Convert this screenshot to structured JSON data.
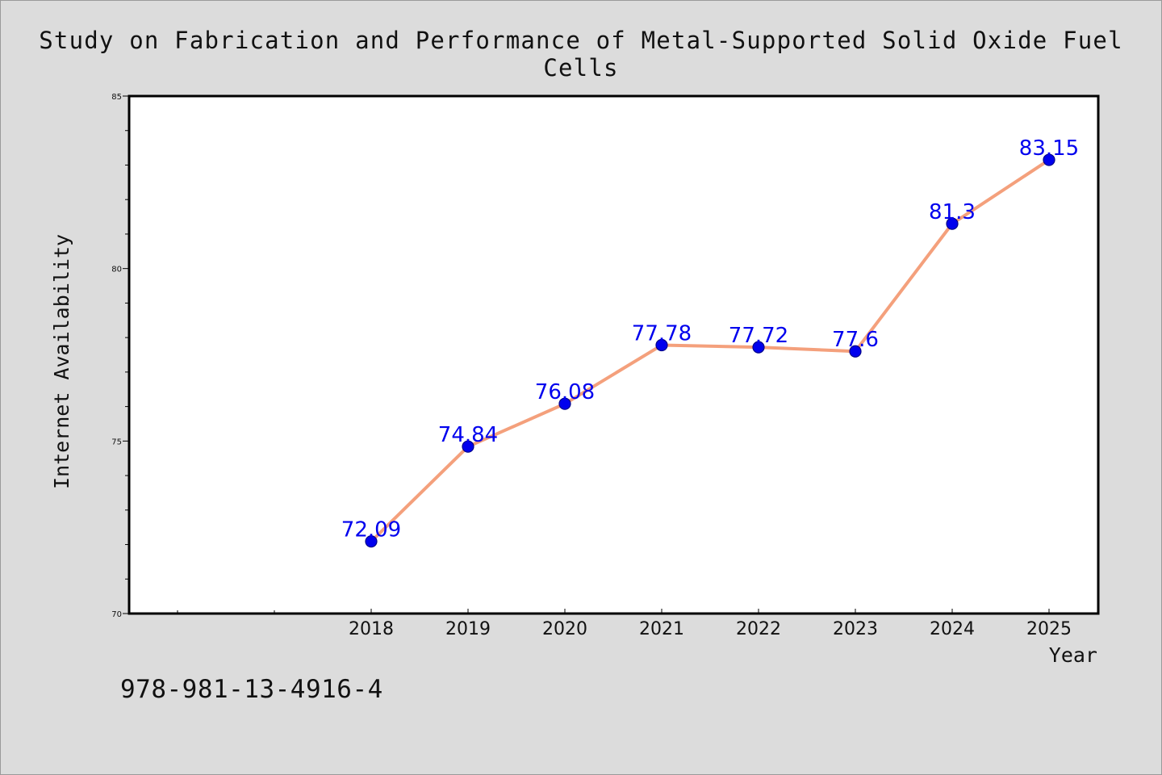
{
  "chart_data": {
    "type": "line",
    "title": "Study on Fabrication and Performance of Metal-Supported Solid Oxide Fuel Cells",
    "xlabel": "Year",
    "ylabel": "Internet Availability",
    "categories": [
      "2018",
      "2019",
      "2020",
      "2021",
      "2022",
      "2023",
      "2024",
      "2025"
    ],
    "series": [
      {
        "values": [
          72.09,
          74.84,
          76.08,
          77.78,
          77.72,
          77.6,
          81.3,
          83.15
        ],
        "data_labels": [
          "72.09",
          "74.84",
          "76.08",
          "77.78",
          "77.72",
          "77.6",
          "81.3",
          "83.15"
        ]
      }
    ],
    "ylim": [
      70,
      85
    ],
    "yticks": [
      "70",
      "75",
      "80",
      "85"
    ],
    "grid": false,
    "legend": "none",
    "colors": {
      "line": "#f4a07c",
      "marker": "#0000ee",
      "label": "#0000ee",
      "background": "#dcdcdc",
      "plot_background": "#ffffff"
    }
  },
  "footer": {
    "isbn": "978-981-13-4916-4"
  }
}
